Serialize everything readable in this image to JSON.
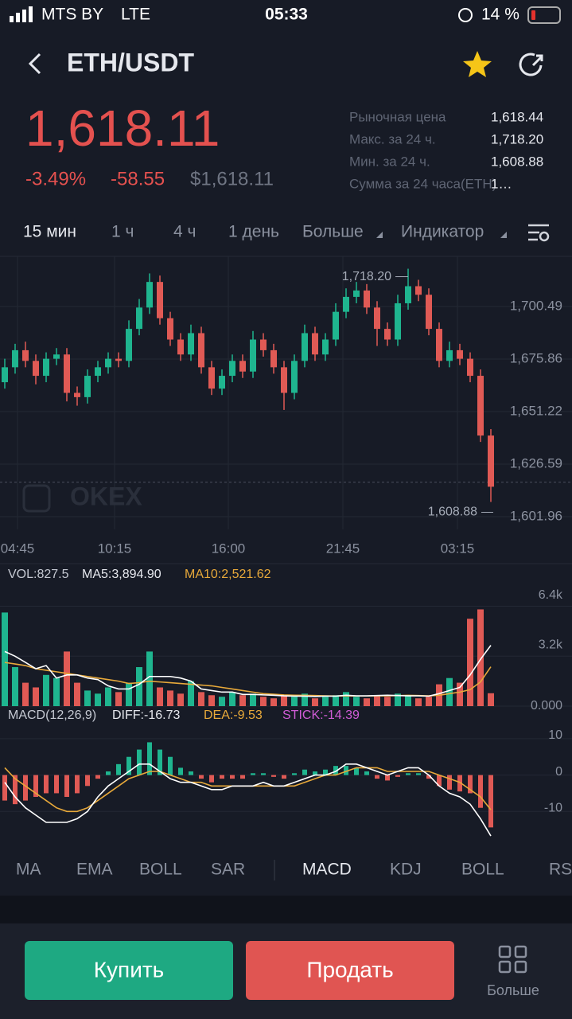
{
  "status_bar": {
    "carrier": "MTS BY",
    "network": "LTE",
    "time": "05:33",
    "battery": "14 %"
  },
  "header": {
    "title": "ETH/USDT"
  },
  "price": {
    "last": "1,618.11",
    "change_pct": "-3.49%",
    "change": "-58.55",
    "usd": "$1,618.11"
  },
  "stats": [
    {
      "label": "Рыночная цена",
      "value": "1,618.44"
    },
    {
      "label": "Макс. за 24 ч.",
      "value": "1,718.20"
    },
    {
      "label": "Мин. за 24 ч.",
      "value": "1,608.88"
    },
    {
      "label": "Сумма за 24 часа(ETH)",
      "value": "1…"
    }
  ],
  "timeframes": [
    "15 мин",
    "1 ч",
    "4 ч",
    "1 день",
    "Больше",
    "Индикатор"
  ],
  "chart": {
    "type": "candlestick",
    "candles": [
      [
        1665,
        1676,
        1662,
        1672
      ],
      [
        1672,
        1683,
        1669,
        1680
      ],
      [
        1680,
        1684,
        1672,
        1675
      ],
      [
        1675,
        1678,
        1664,
        1668
      ],
      [
        1668,
        1679,
        1665,
        1676
      ],
      [
        1676,
        1681,
        1673,
        1678
      ],
      [
        1678,
        1681,
        1656,
        1660
      ],
      [
        1660,
        1663,
        1654,
        1658
      ],
      [
        1658,
        1671,
        1655,
        1668
      ],
      [
        1668,
        1675,
        1665,
        1672
      ],
      [
        1672,
        1679,
        1669,
        1676
      ],
      [
        1676,
        1679,
        1672,
        1675
      ],
      [
        1675,
        1694,
        1672,
        1690
      ],
      [
        1690,
        1704,
        1687,
        1700
      ],
      [
        1700,
        1716,
        1697,
        1712
      ],
      [
        1712,
        1715,
        1692,
        1695
      ],
      [
        1695,
        1698,
        1682,
        1685
      ],
      [
        1685,
        1688,
        1675,
        1678
      ],
      [
        1678,
        1692,
        1675,
        1688
      ],
      [
        1688,
        1691,
        1669,
        1672
      ],
      [
        1672,
        1675,
        1659,
        1662
      ],
      [
        1662,
        1671,
        1659,
        1668
      ],
      [
        1668,
        1678,
        1665,
        1675
      ],
      [
        1675,
        1678,
        1667,
        1670
      ],
      [
        1670,
        1689,
        1667,
        1685
      ],
      [
        1685,
        1688,
        1677,
        1680
      ],
      [
        1680,
        1683,
        1669,
        1672
      ],
      [
        1672,
        1675,
        1652,
        1660
      ],
      [
        1660,
        1678,
        1657,
        1675
      ],
      [
        1675,
        1692,
        1672,
        1688
      ],
      [
        1688,
        1691,
        1675,
        1678
      ],
      [
        1678,
        1688,
        1675,
        1685
      ],
      [
        1685,
        1702,
        1682,
        1698
      ],
      [
        1698,
        1709,
        1695,
        1705
      ],
      [
        1705,
        1712,
        1702,
        1708
      ],
      [
        1708,
        1711,
        1697,
        1700
      ],
      [
        1700,
        1703,
        1682,
        1690
      ],
      [
        1690,
        1693,
        1682,
        1685
      ],
      [
        1685,
        1706,
        1682,
        1702
      ],
      [
        1702,
        1718.2,
        1699,
        1710
      ],
      [
        1710,
        1713,
        1703,
        1706
      ],
      [
        1706,
        1709,
        1687,
        1690
      ],
      [
        1690,
        1693,
        1672,
        1675
      ],
      [
        1675,
        1684,
        1672,
        1680
      ],
      [
        1680,
        1683,
        1673,
        1676
      ],
      [
        1676,
        1679,
        1665,
        1668
      ],
      [
        1668,
        1671,
        1637,
        1640
      ],
      [
        1640,
        1643,
        1608.88,
        1616
      ]
    ],
    "ylim": [
      1596,
      1724
    ],
    "yticks": [
      {
        "value": 1700.49,
        "label": "1,700.49"
      },
      {
        "value": 1675.86,
        "label": "1,675.86"
      },
      {
        "value": 1651.22,
        "label": "1,651.22"
      },
      {
        "value": 1626.59,
        "label": "1,626.59"
      },
      {
        "value": 1601.96,
        "label": "1,601.96"
      }
    ],
    "time_labels": [
      "04:45",
      "10:15",
      "16:00",
      "21:45",
      "03:15"
    ],
    "high_label": "1,718.20",
    "low_label": "1,608.88",
    "current_price": 1618.11,
    "watermark": "OKEX"
  },
  "volume": {
    "type": "bar",
    "label": "VOL:827.5",
    "ma5_label": "MA5:3,894.90",
    "ma10_label": "MA10:2,521.62",
    "values": [
      6000,
      2500,
      1500,
      1200,
      2000,
      1800,
      3500,
      1500,
      1000,
      800,
      1200,
      900,
      1500,
      2500,
      3500,
      1200,
      1000,
      800,
      1600,
      900,
      700,
      600,
      900,
      700,
      800,
      600,
      500,
      700,
      600,
      800,
      500,
      600,
      700,
      900,
      600,
      500,
      700,
      600,
      800,
      700,
      500,
      600,
      1400,
      1800,
      1500,
      5600,
      6200,
      827.5
    ],
    "ma5": [
      3500,
      3200,
      2800,
      2400,
      2600,
      1800,
      2000,
      2000,
      1800,
      1700,
      1300,
      1100,
      1100,
      1400,
      1900,
      1900,
      1900,
      1800,
      1600,
      1100,
      1000,
      900,
      900,
      750,
      750,
      720,
      700,
      660,
      640,
      640,
      620,
      640,
      640,
      700,
      660,
      660,
      680,
      700,
      680,
      660,
      660,
      640,
      800,
      1000,
      1200,
      2000,
      3000,
      3894.9
    ],
    "ma10": [
      2800,
      2700,
      2600,
      2400,
      2300,
      2200,
      2100,
      2000,
      1900,
      1800,
      1700,
      1600,
      1450,
      1500,
      1600,
      1550,
      1500,
      1450,
      1400,
      1350,
      1300,
      1200,
      1100,
      1000,
      900,
      800,
      760,
      720,
      700,
      690,
      680,
      660,
      650,
      660,
      650,
      650,
      660,
      660,
      680,
      690,
      680,
      660,
      700,
      800,
      900,
      1060,
      1550,
      2521.62
    ],
    "ylim": [
      0,
      7500
    ],
    "yticks": [
      {
        "value": 6400,
        "label": "6.4k"
      },
      {
        "value": 3200,
        "label": "3.2k"
      },
      {
        "value": 0,
        "label": "0.000"
      }
    ]
  },
  "macd": {
    "type": "bar",
    "label": "MACD(12,26,9)",
    "diff_label": "DIFF:-16.73",
    "dea_label": "DEA:-9.53",
    "stick_label": "STICK:-14.39",
    "stick": [
      -7,
      -8,
      -7,
      -6,
      -5,
      -5,
      -6,
      -5,
      -3,
      -1,
      1,
      3,
      5,
      7,
      9,
      7,
      5,
      2,
      1,
      -1,
      -2,
      -1,
      -1,
      -1,
      0.5,
      0.5,
      -0.5,
      -1,
      0.5,
      1.5,
      1,
      1.5,
      2.5,
      2.5,
      2,
      1,
      -1,
      -1.5,
      -0.5,
      0.5,
      0.5,
      -1,
      -3,
      -4,
      -4.5,
      -5,
      -9,
      -14.39
    ],
    "diff": [
      -2,
      -6,
      -9,
      -11,
      -13,
      -13,
      -13,
      -12,
      -10,
      -6,
      -3,
      -1,
      1,
      3,
      3,
      1,
      -1,
      -2,
      -2,
      -3,
      -4,
      -4,
      -3,
      -3,
      -3,
      -2,
      -3,
      -3,
      -2,
      -1,
      0,
      0,
      1,
      3,
      3,
      2,
      1,
      0,
      1,
      2,
      2,
      0,
      -3,
      -5,
      -6,
      -8,
      -12,
      -16.73
    ],
    "dea": [
      2,
      -1,
      -3,
      -5,
      -7,
      -9,
      -10,
      -10,
      -9,
      -7,
      -5,
      -3,
      -1,
      0,
      1,
      1,
      0,
      -1,
      -2,
      -2,
      -3,
      -3,
      -3,
      -3,
      -3,
      -3,
      -3,
      -3,
      -3,
      -2,
      -1,
      0,
      0,
      1,
      2,
      2,
      2,
      1,
      1,
      1,
      1,
      1,
      0,
      -1,
      -2,
      -4,
      -6,
      -9.53
    ],
    "ylim": [
      -20,
      15
    ],
    "yticks": [
      10,
      0,
      -10
    ]
  },
  "indicators": [
    "MA",
    "EMA",
    "BOLL",
    "SAR",
    "MACD",
    "KDJ",
    "BOLL",
    "RS"
  ],
  "actions": {
    "buy": "Купить",
    "sell": "Продать",
    "more": "Больше"
  }
}
